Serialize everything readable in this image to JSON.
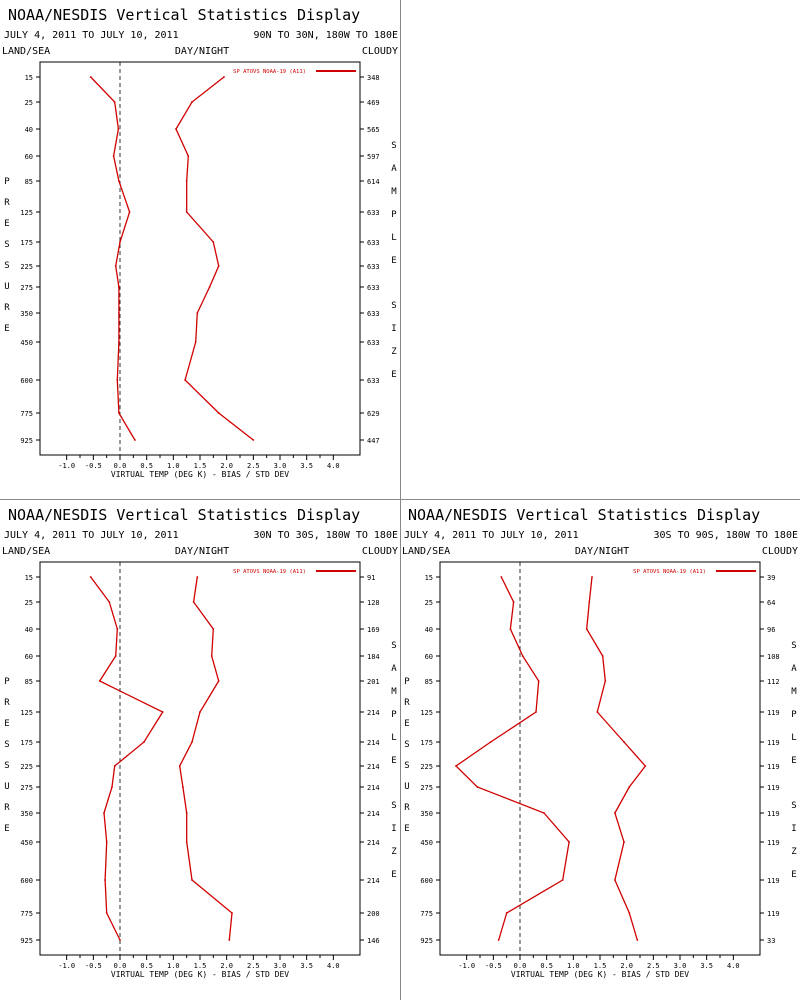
{
  "colors": {
    "series": "#d00000",
    "zero_line": "#000000",
    "frame": "#000000"
  },
  "chart_data": [
    {
      "type": "line",
      "title": "NOAA/NESDIS Vertical Statistics Display",
      "date_range": "JULY 4, 2011 TO JULY 10, 2011",
      "region": "90N TO 30N, 180W TO 180E",
      "left_label": "LAND/SEA",
      "center_label": "DAY/NIGHT",
      "right_label": "CLOUDY",
      "ylabel": "PRESSURE",
      "y2label": "SAMPLE SIZE",
      "xlabel": "VIRTUAL TEMP (DEG K) - BIAS / STD DEV",
      "xlim": [
        -1.5,
        4.5
      ],
      "x_ticks": [
        "-1.0",
        "-0.5",
        "0.0",
        "0.5",
        "1.0",
        "1.5",
        "2.0",
        "2.5",
        "3.0",
        "3.5",
        "4.0"
      ],
      "y_levels": [
        15,
        25,
        40,
        60,
        85,
        125,
        175,
        225,
        275,
        350,
        450,
        600,
        775,
        925
      ],
      "sample_size": [
        "348",
        "469",
        "565",
        "597",
        "614",
        "633",
        "633",
        "633",
        "633",
        "633",
        "633",
        "633",
        "629",
        "447"
      ],
      "legend": "SP ATOVS NOAA-19 (A11)",
      "series": [
        {
          "values": [
            -0.55,
            -0.1,
            -0.03,
            -0.12,
            -0.02,
            0.18,
            0.0,
            -0.08,
            -0.02,
            -0.02,
            -0.02,
            -0.05,
            -0.02,
            0.28
          ]
        },
        {
          "values": [
            1.95,
            1.35,
            1.05,
            1.28,
            1.25,
            1.25,
            1.75,
            1.85,
            1.68,
            1.45,
            1.42,
            1.22,
            1.85,
            2.5
          ]
        }
      ]
    },
    {
      "type": "line",
      "title": "NOAA/NESDIS Vertical Statistics Display",
      "date_range": "JULY 4, 2011 TO JULY 10, 2011",
      "region": "30N TO 30S, 180W TO 180E",
      "left_label": "LAND/SEA",
      "center_label": "DAY/NIGHT",
      "right_label": "CLOUDY",
      "ylabel": "PRESSURE",
      "y2label": "SAMPLE SIZE",
      "xlabel": "VIRTUAL TEMP (DEG K) - BIAS / STD DEV",
      "xlim": [
        -1.5,
        4.5
      ],
      "x_ticks": [
        "-1.0",
        "-0.5",
        "0.0",
        "0.5",
        "1.0",
        "1.5",
        "2.0",
        "2.5",
        "3.0",
        "3.5",
        "4.0"
      ],
      "y_levels": [
        15,
        25,
        40,
        60,
        85,
        125,
        175,
        225,
        275,
        350,
        450,
        600,
        775,
        925
      ],
      "sample_size": [
        "91",
        "128",
        "169",
        "184",
        "201",
        "214",
        "214",
        "214",
        "214",
        "214",
        "214",
        "214",
        "200",
        "146"
      ],
      "legend": "SP ATOVS NOAA-19 (A11)",
      "series": [
        {
          "values": [
            -0.55,
            -0.2,
            -0.05,
            -0.08,
            -0.38,
            0.8,
            0.45,
            -0.1,
            -0.15,
            -0.3,
            -0.25,
            -0.28,
            -0.25,
            0.0
          ]
        },
        {
          "values": [
            1.45,
            1.38,
            1.75,
            1.72,
            1.85,
            1.5,
            1.35,
            1.12,
            1.18,
            1.25,
            1.25,
            1.35,
            2.1,
            2.05
          ]
        }
      ]
    },
    {
      "type": "line",
      "title": "NOAA/NESDIS Vertical Statistics Display",
      "date_range": "JULY 4, 2011 TO JULY 10, 2011",
      "region": "30S TO 90S, 180W TO 180E",
      "left_label": "LAND/SEA",
      "center_label": "DAY/NIGHT",
      "right_label": "CLOUDY",
      "ylabel": "PRESSURE",
      "y2label": "SAMPLE SIZE",
      "xlabel": "VIRTUAL TEMP (DEG K) - BIAS / STD DEV",
      "xlim": [
        -1.5,
        4.5
      ],
      "x_ticks": [
        "-1.0",
        "-0.5",
        "0.0",
        "0.5",
        "1.0",
        "1.5",
        "2.0",
        "2.5",
        "3.0",
        "3.5",
        "4.0"
      ],
      "y_levels": [
        15,
        25,
        40,
        60,
        85,
        125,
        175,
        225,
        275,
        350,
        450,
        600,
        775,
        925
      ],
      "sample_size": [
        "39",
        "64",
        "96",
        "108",
        "112",
        "119",
        "119",
        "119",
        "119",
        "119",
        "119",
        "119",
        "119",
        "33"
      ],
      "legend": "SP ATOVS NOAA-19 (A11)",
      "series": [
        {
          "values": [
            -0.35,
            -0.12,
            -0.18,
            0.05,
            0.35,
            0.3,
            -0.55,
            -1.2,
            -0.8,
            0.45,
            0.92,
            0.8,
            -0.25,
            -0.4
          ]
        },
        {
          "values": [
            1.35,
            1.3,
            1.25,
            1.55,
            1.6,
            1.45,
            1.95,
            2.35,
            2.05,
            1.78,
            1.95,
            1.78,
            2.05,
            2.2
          ]
        }
      ]
    }
  ]
}
